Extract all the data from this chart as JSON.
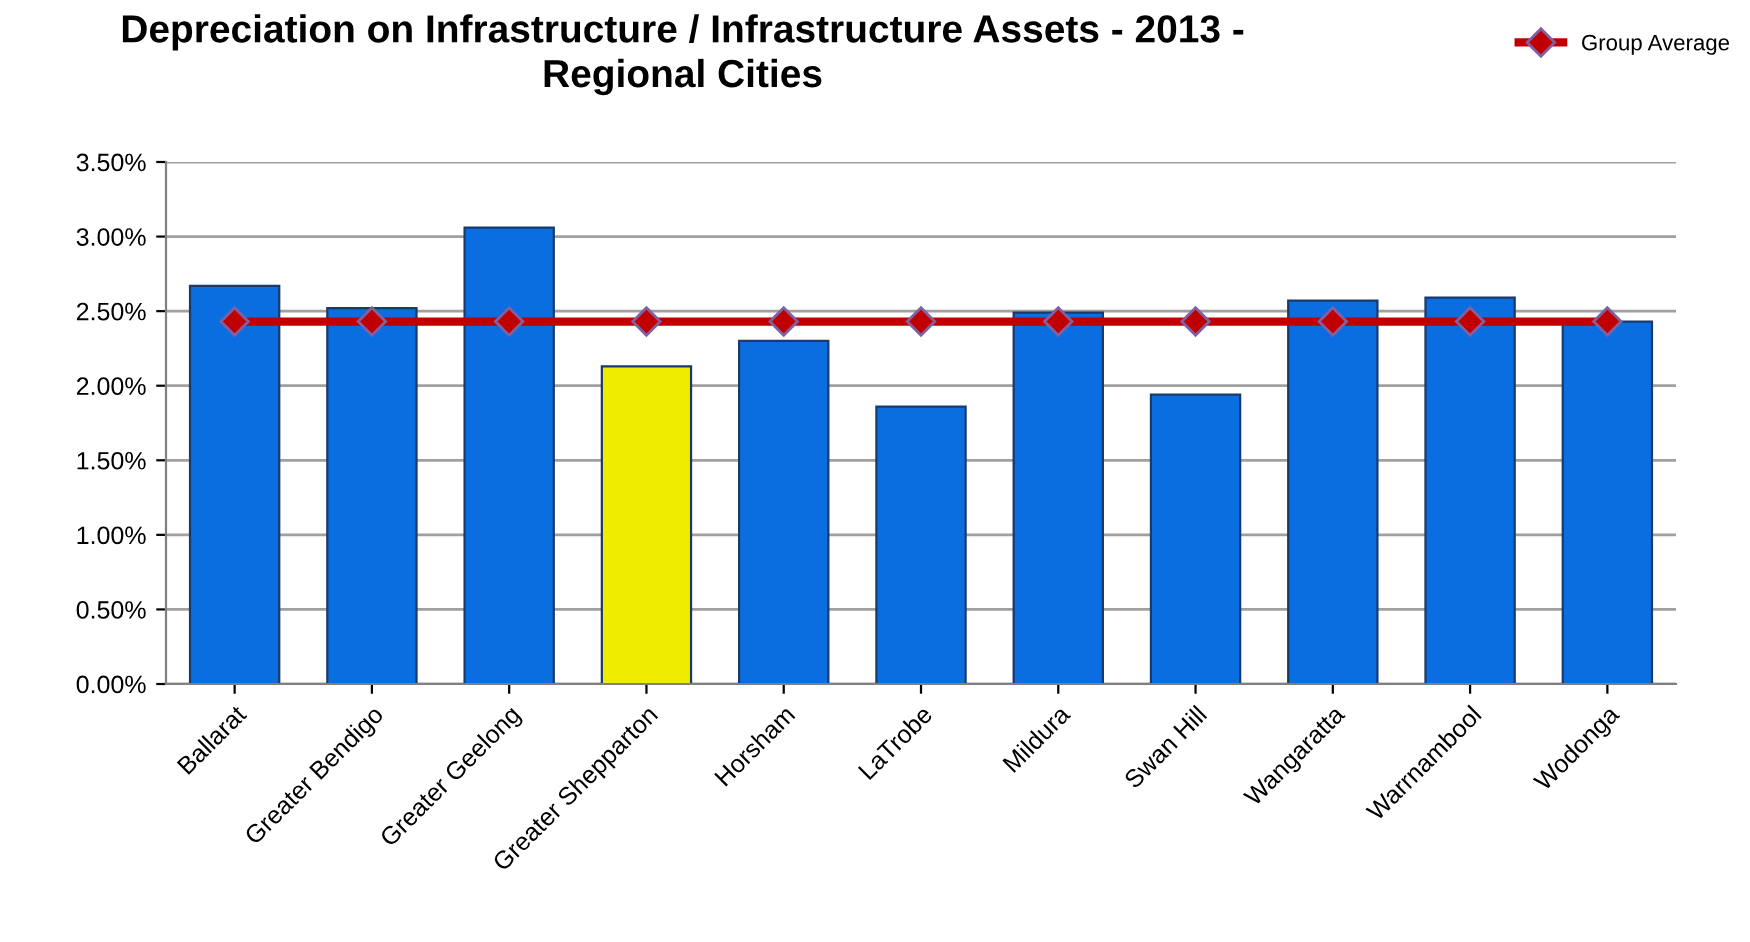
{
  "chart_data": {
    "type": "bar",
    "title": "Depreciation on Infrastructure / Infrastructure Assets - 2013 -\nRegional Cities",
    "categories": [
      "Ballarat",
      "Greater Bendigo",
      "Greater Geelong",
      "Greater Shepparton",
      "Horsham",
      "LaTrobe",
      "Mildura",
      "Swan Hill",
      "Wangaratta",
      "Warrnambool",
      "Wodonga"
    ],
    "series": [
      {
        "colors": [
          "#0a6ee0",
          "#0a6ee0",
          "#0a6ee0",
          "#f0ec00",
          "#0a6ee0",
          "#0a6ee0",
          "#0a6ee0",
          "#0a6ee0",
          "#0a6ee0",
          "#0a6ee0",
          "#0a6ee0"
        ],
        "values": [
          2.67,
          2.52,
          3.06,
          2.13,
          2.3,
          1.86,
          2.49,
          1.94,
          2.57,
          2.59,
          2.43
        ]
      },
      {
        "type": "line",
        "name": "Group Average",
        "color": "#c00000",
        "marker": "diamond",
        "values": [
          2.43,
          2.43,
          2.43,
          2.43,
          2.43,
          2.43,
          2.43,
          2.43,
          2.43,
          2.43,
          2.43
        ]
      }
    ],
    "ylim": [
      0,
      3.5
    ],
    "yticks": [
      {
        "value": 0,
        "label": "0.00%"
      },
      {
        "value": 0.5,
        "label": "0.50%"
      },
      {
        "value": 1,
        "label": "1.00%"
      },
      {
        "value": 1.5,
        "label": "1.50%"
      },
      {
        "value": 2,
        "label": "2.00%"
      },
      {
        "value": 2.5,
        "label": "2.50%"
      },
      {
        "value": 3,
        "label": "3.00%"
      },
      {
        "value": 3.5,
        "label": "3.50%"
      }
    ],
    "grid": "y",
    "legend": "top right"
  }
}
